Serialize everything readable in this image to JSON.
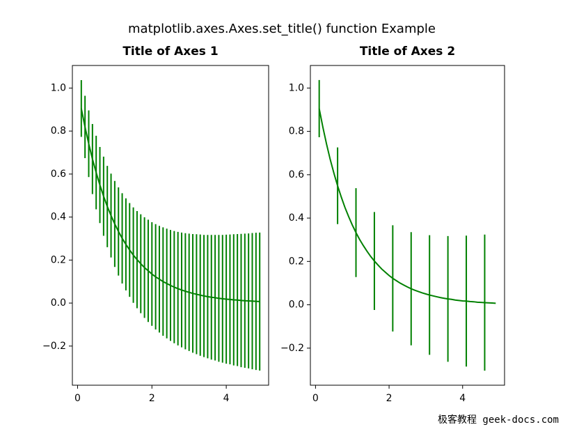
{
  "figure_title": "matplotlib.axes.Axes.set_title() function Example",
  "watermark": "极客教程 geek-docs.com",
  "chart_data": [
    {
      "type": "errorbar",
      "title": "Title of Axes 1",
      "color": "#008000",
      "x": [
        0.1,
        0.2,
        0.3,
        0.4,
        0.5,
        0.6,
        0.7,
        0.8,
        0.9,
        1.0,
        1.1,
        1.2,
        1.3,
        1.4,
        1.5,
        1.6,
        1.7,
        1.8,
        1.9,
        2.0,
        2.1,
        2.2,
        2.3,
        2.4,
        2.5,
        2.6,
        2.7,
        2.8,
        2.9,
        3.0,
        3.1,
        3.2,
        3.3,
        3.4,
        3.5,
        3.6,
        3.7,
        3.8,
        3.9,
        4.0,
        4.1,
        4.2,
        4.3,
        4.4,
        4.5,
        4.6,
        4.7,
        4.8,
        4.9
      ],
      "values": [
        0.905,
        0.819,
        0.741,
        0.67,
        0.607,
        0.549,
        0.497,
        0.449,
        0.407,
        0.368,
        0.333,
        0.301,
        0.273,
        0.247,
        0.223,
        0.202,
        0.183,
        0.165,
        0.15,
        0.135,
        0.122,
        0.111,
        0.1,
        0.091,
        0.082,
        0.074,
        0.067,
        0.061,
        0.055,
        0.05,
        0.045,
        0.041,
        0.037,
        0.033,
        0.03,
        0.027,
        0.025,
        0.022,
        0.02,
        0.018,
        0.017,
        0.015,
        0.014,
        0.012,
        0.011,
        0.01,
        0.009,
        0.008,
        0.007
      ],
      "yerr": [
        0.132,
        0.145,
        0.155,
        0.163,
        0.171,
        0.177,
        0.184,
        0.189,
        0.195,
        0.2,
        0.205,
        0.21,
        0.214,
        0.218,
        0.222,
        0.226,
        0.23,
        0.234,
        0.238,
        0.241,
        0.245,
        0.248,
        0.252,
        0.255,
        0.258,
        0.261,
        0.264,
        0.267,
        0.27,
        0.273,
        0.276,
        0.279,
        0.282,
        0.284,
        0.287,
        0.29,
        0.292,
        0.295,
        0.297,
        0.3,
        0.302,
        0.305,
        0.307,
        0.31,
        0.312,
        0.314,
        0.317,
        0.319,
        0.321
      ],
      "xlim": [
        -0.14,
        5.14
      ],
      "ylim": [
        -0.382,
        1.105
      ],
      "xticks": [
        0,
        2,
        4
      ],
      "yticks": [
        {
          "value": -0.2,
          "label": "−0.2"
        },
        {
          "value": 0,
          "label": "0.0"
        },
        0.2,
        0.4,
        0.6,
        0.8,
        {
          "value": 1,
          "label": "1.0"
        }
      ]
    },
    {
      "type": "errorbar",
      "title": "Title of Axes 2",
      "color": "#008000",
      "x": [
        0.1,
        0.2,
        0.3,
        0.4,
        0.5,
        0.6,
        0.7,
        0.8,
        0.9,
        1.0,
        1.1,
        1.2,
        1.3,
        1.4,
        1.5,
        1.6,
        1.7,
        1.8,
        1.9,
        2.0,
        2.1,
        2.2,
        2.3,
        2.4,
        2.5,
        2.6,
        2.7,
        2.8,
        2.9,
        3.0,
        3.1,
        3.2,
        3.3,
        3.4,
        3.5,
        3.6,
        3.7,
        3.8,
        3.9,
        4.0,
        4.1,
        4.2,
        4.3,
        4.4,
        4.5,
        4.6,
        4.7,
        4.8,
        4.9
      ],
      "values": [
        0.905,
        0.819,
        0.741,
        0.67,
        0.607,
        0.549,
        0.497,
        0.449,
        0.407,
        0.368,
        0.333,
        0.301,
        0.273,
        0.247,
        0.223,
        0.202,
        0.183,
        0.165,
        0.15,
        0.135,
        0.122,
        0.111,
        0.1,
        0.091,
        0.082,
        0.074,
        0.067,
        0.061,
        0.055,
        0.05,
        0.045,
        0.041,
        0.037,
        0.033,
        0.03,
        0.027,
        0.025,
        0.022,
        0.02,
        0.018,
        0.017,
        0.015,
        0.014,
        0.012,
        0.011,
        0.01,
        0.009,
        0.008,
        0.007
      ],
      "yerr": [
        0.132,
        null,
        null,
        null,
        null,
        0.177,
        null,
        null,
        null,
        null,
        0.205,
        null,
        null,
        null,
        null,
        0.226,
        null,
        null,
        null,
        null,
        0.245,
        null,
        null,
        null,
        null,
        0.261,
        null,
        null,
        null,
        null,
        0.276,
        null,
        null,
        null,
        null,
        0.29,
        null,
        null,
        null,
        null,
        0.302,
        null,
        null,
        null,
        null,
        0.314,
        null,
        null,
        null
      ],
      "xlim": [
        -0.14,
        5.14
      ],
      "ylim": [
        -0.371,
        1.104
      ],
      "xticks": [
        0,
        2,
        4
      ],
      "yticks": [
        {
          "value": -0.2,
          "label": "−0.2"
        },
        {
          "value": 0,
          "label": "0.0"
        },
        0.2,
        0.4,
        0.6,
        0.8,
        {
          "value": 1,
          "label": "1.0"
        }
      ]
    }
  ]
}
